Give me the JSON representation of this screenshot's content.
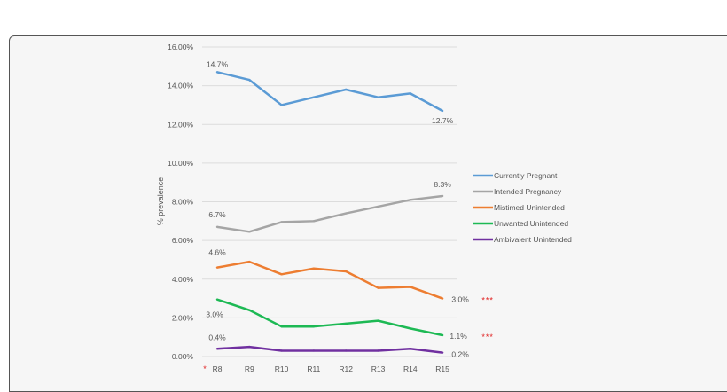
{
  "chart_data": {
    "type": "line",
    "title": "",
    "xlabel": "",
    "ylabel": "% prevalence",
    "categories": [
      "R8",
      "R9",
      "R10",
      "R11",
      "R12",
      "R13",
      "R14",
      "R15"
    ],
    "ylim": [
      0,
      16
    ],
    "yticks": [
      "0.00%",
      "2.00%",
      "4.00%",
      "6.00%",
      "8.00%",
      "10.00%",
      "12.00%",
      "14.00%",
      "16.00%"
    ],
    "grid": true,
    "legend_position": "right",
    "series": [
      {
        "name": "Currently Pregnant",
        "color": "#5b9bd5",
        "values": [
          14.7,
          14.3,
          13.0,
          13.4,
          13.8,
          13.4,
          13.6,
          12.7
        ],
        "first_label": "14.7%",
        "last_label": "12.7%",
        "significance": ""
      },
      {
        "name": "Intended Pregnancy",
        "color": "#a5a5a5",
        "values": [
          6.7,
          6.45,
          6.95,
          7.0,
          7.4,
          7.75,
          8.1,
          8.3
        ],
        "first_label": "6.7%",
        "last_label": "8.3%",
        "significance": ""
      },
      {
        "name": "Mistimed Unintended",
        "color": "#ed7d31",
        "values": [
          4.6,
          4.9,
          4.25,
          4.55,
          4.4,
          3.55,
          3.6,
          3.0
        ],
        "first_label": "4.6%",
        "last_label": "3.0%",
        "significance": "***"
      },
      {
        "name": "Unwanted Unintended",
        "color": "#1db954",
        "values": [
          2.95,
          2.4,
          1.55,
          1.55,
          1.7,
          1.85,
          1.45,
          1.1
        ],
        "first_label": "3.0%",
        "last_label": "1.1%",
        "significance": "***"
      },
      {
        "name": "Ambivalent Unintended",
        "color": "#7030a0",
        "values": [
          0.4,
          0.5,
          0.3,
          0.3,
          0.3,
          0.3,
          0.4,
          0.2
        ],
        "first_label": "0.4%",
        "last_label": "0.2%",
        "significance": ""
      }
    ],
    "footnote_marker": "*",
    "significance_color": "#e02020"
  }
}
